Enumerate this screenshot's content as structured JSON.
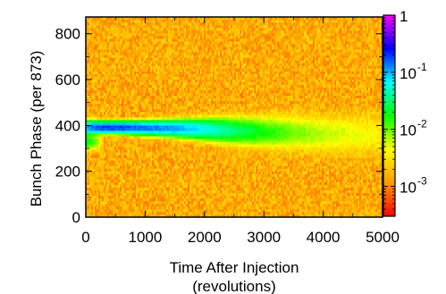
{
  "chart_data": {
    "type": "heatmap",
    "title": "",
    "xlabel_line1": "Time After Injection",
    "xlabel_line2": "(revolutions)",
    "ylabel": "Bunch Phase (per 873)",
    "xlim": [
      0,
      5000
    ],
    "ylim": [
      0,
      873
    ],
    "x_ticks": [
      0,
      1000,
      2000,
      3000,
      4000,
      5000
    ],
    "y_ticks": [
      0,
      200,
      400,
      600,
      800
    ],
    "background_level": 0.0015,
    "colorbar": {
      "scale": "log",
      "range": [
        0.0003,
        1
      ],
      "ticks": [
        {
          "base": "1",
          "exp": ""
        },
        {
          "base": "10",
          "exp": "-1"
        },
        {
          "base": "10",
          "exp": "-2"
        },
        {
          "base": "10",
          "exp": "-3"
        }
      ],
      "colors": [
        "#ff0000",
        "#ff9a00",
        "#ffff00",
        "#00ff00",
        "#00ffff",
        "#0000ff",
        "#ff00ff"
      ]
    },
    "bunch_profile": {
      "x": [
        0,
        250,
        500,
        1000,
        1500,
        2000,
        2500,
        3000,
        3500,
        4000,
        4500,
        5000
      ],
      "center_phase": [
        392,
        392,
        392,
        390,
        388,
        384,
        378,
        372,
        368,
        365,
        362,
        360
      ],
      "peak_intensity": [
        0.1,
        0.2,
        0.2,
        0.15,
        0.11,
        0.06,
        0.03,
        0.015,
        0.008,
        0.005,
        0.0035,
        0.002
      ],
      "width": [
        15,
        12,
        12,
        14,
        17,
        22,
        28,
        33,
        38,
        42,
        46,
        50
      ]
    },
    "tail_phase": 330,
    "tail_extent_x": 300
  }
}
